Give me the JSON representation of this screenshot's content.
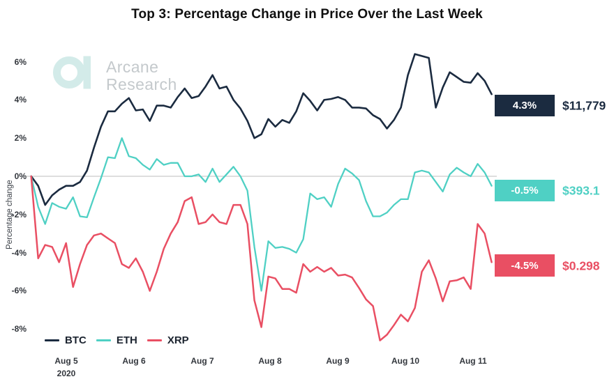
{
  "title": "Top 3: Percentage Change in Price Over the Last Week",
  "watermark": {
    "line1": "Arcane",
    "line2": "Research",
    "logo_color": "#d3ebe9",
    "text_color": "#c4c9cc"
  },
  "y_axis": {
    "label": "Percentage change",
    "ticks": [
      "6%",
      "4%",
      "2%",
      "0%",
      "-2%",
      "-4%",
      "-6%",
      "-8%"
    ]
  },
  "x_axis": {
    "ticks": [
      "Aug 5",
      "Aug 6",
      "Aug 7",
      "Aug 8",
      "Aug 9",
      "Aug 10",
      "Aug 11"
    ],
    "year": "2020"
  },
  "legend": [
    {
      "label": "BTC"
    },
    {
      "label": "ETH"
    },
    {
      "label": "XRP"
    }
  ],
  "annotations": [
    {
      "series": "BTC",
      "change": "4.3%",
      "price": "$11,779",
      "color": "#1b2b40"
    },
    {
      "series": "ETH",
      "change": "-0.5%",
      "price": "$393.1",
      "color": "#4fd0c4"
    },
    {
      "series": "XRP",
      "change": "-4.5%",
      "price": "$0.298",
      "color": "#e94f63"
    }
  ],
  "chart_data": {
    "type": "line",
    "title": "Top 3: Percentage Change in Price Over the Last Week",
    "ylabel": "Percentage change",
    "ylim": [
      -9,
      7
    ],
    "y_ticks_pct": [
      6,
      4,
      2,
      0,
      -2,
      -4,
      -6,
      -8
    ],
    "grid": "zero-line-only",
    "legend_position": "bottom-left",
    "x_unit": "days relative to the Aug 5 2020 tick",
    "x_tick_days": [
      0,
      1,
      2,
      3,
      4,
      5,
      6
    ],
    "x_tick_labels": [
      "Aug 5",
      "Aug 6",
      "Aug 7",
      "Aug 8",
      "Aug 9",
      "Aug 10",
      "Aug 11"
    ],
    "x_start": -0.52,
    "x_step": 0.1033,
    "series": [
      {
        "name": "BTC",
        "color": "#1b2b40",
        "final_change": "4.3%",
        "final_price": "$11,779",
        "values": [
          0.0,
          -0.5,
          -1.5,
          -1.0,
          -0.7,
          -0.5,
          -0.5,
          -0.3,
          0.3,
          1.5,
          2.6,
          3.4,
          3.4,
          3.8,
          4.1,
          3.45,
          3.5,
          2.9,
          3.7,
          3.7,
          3.6,
          4.15,
          4.6,
          4.1,
          4.2,
          4.7,
          5.3,
          4.6,
          4.7,
          4.0,
          3.55,
          2.9,
          2.0,
          2.2,
          3.0,
          2.6,
          2.95,
          2.8,
          3.4,
          4.35,
          3.95,
          3.45,
          4.0,
          4.05,
          4.15,
          4.0,
          3.6,
          3.6,
          3.55,
          3.2,
          3.0,
          2.5,
          2.95,
          3.6,
          5.3,
          6.4,
          6.3,
          6.2,
          3.6,
          4.65,
          5.45,
          5.2,
          4.95,
          4.9,
          5.4,
          5.0,
          4.3
        ]
      },
      {
        "name": "ETH",
        "color": "#4fd0c4",
        "final_change": "-0.5%",
        "final_price": "$393.1",
        "values": [
          0.0,
          -1.6,
          -2.5,
          -1.4,
          -1.6,
          -1.7,
          -1.1,
          -2.1,
          -2.15,
          -1.1,
          -0.1,
          1.0,
          0.95,
          2.0,
          1.05,
          0.95,
          0.6,
          0.35,
          0.9,
          0.6,
          0.7,
          0.7,
          0.0,
          0.0,
          0.1,
          -0.3,
          0.4,
          -0.3,
          0.1,
          0.5,
          0.0,
          -0.75,
          -3.7,
          -6.0,
          -3.4,
          -3.75,
          -3.7,
          -3.8,
          -4.0,
          -3.3,
          -0.9,
          -1.2,
          -1.1,
          -1.6,
          -0.4,
          0.4,
          0.15,
          -0.2,
          -1.3,
          -2.1,
          -2.1,
          -1.9,
          -1.5,
          -1.2,
          -1.2,
          0.2,
          0.3,
          0.2,
          -0.3,
          -0.8,
          0.1,
          0.45,
          0.2,
          0.0,
          0.65,
          0.2,
          -0.5
        ]
      },
      {
        "name": "XRP",
        "color": "#e94f63",
        "final_change": "-4.5%",
        "final_price": "$0.298",
        "values": [
          0.0,
          -4.3,
          -3.6,
          -3.7,
          -4.5,
          -3.5,
          -5.8,
          -4.6,
          -3.6,
          -3.1,
          -3.0,
          -3.25,
          -3.5,
          -4.6,
          -4.8,
          -4.3,
          -5.0,
          -6.0,
          -5.0,
          -3.8,
          -3.0,
          -2.4,
          -1.3,
          -1.1,
          -2.5,
          -2.4,
          -2.0,
          -2.4,
          -2.5,
          -1.5,
          -1.5,
          -2.5,
          -6.5,
          -7.9,
          -5.25,
          -5.35,
          -5.9,
          -5.9,
          -6.1,
          -4.6,
          -5.0,
          -4.75,
          -5.0,
          -4.8,
          -5.2,
          -5.15,
          -5.3,
          -5.85,
          -6.45,
          -6.8,
          -8.6,
          -8.3,
          -7.8,
          -7.25,
          -7.6,
          -6.9,
          -5.0,
          -4.4,
          -5.35,
          -6.55,
          -5.5,
          -5.45,
          -5.3,
          -5.9,
          -2.5,
          -3.0,
          -4.5
        ]
      }
    ]
  }
}
